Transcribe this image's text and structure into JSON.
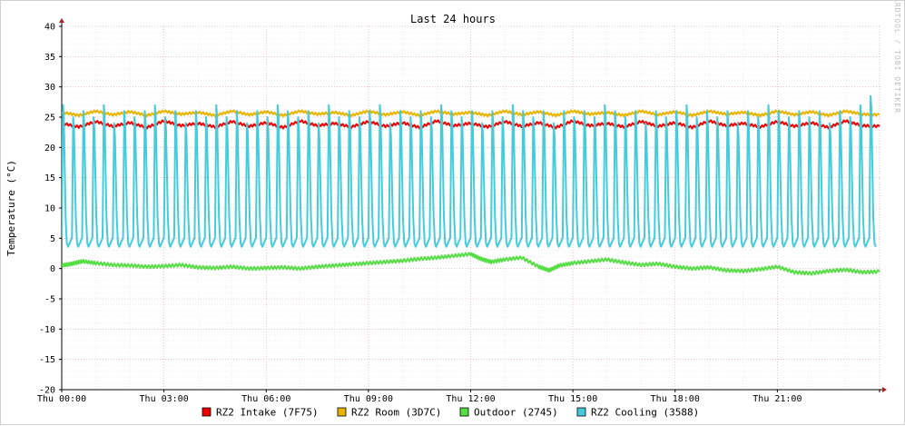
{
  "chart_data": {
    "type": "line",
    "title": "Last 24 hours",
    "ylabel": "Temperature (°C)",
    "watermark": "RRDTOOL / TOBI OETIKER",
    "ylim": [
      -20,
      40
    ],
    "y_ticks": [
      40,
      35,
      30,
      25,
      20,
      15,
      10,
      5,
      0,
      -5,
      -10,
      -15,
      -20
    ],
    "x_ticks": [
      "Thu 00:00",
      "Thu 03:00",
      "Thu 06:00",
      "Thu 09:00",
      "Thu 12:00",
      "Thu 15:00",
      "Thu 18:00",
      "Thu 21:00"
    ],
    "xlim_hours": [
      0,
      24
    ],
    "series": [
      {
        "name": "RZ2 Intake (7F75)",
        "color": "#ee0000",
        "x": [
          0,
          0.5,
          1,
          1.5,
          2,
          2.5,
          3,
          3.5,
          4,
          4.5,
          5,
          5.5,
          6,
          6.5,
          7,
          7.5,
          8,
          8.5,
          9,
          9.5,
          10,
          10.5,
          11,
          11.5,
          12,
          12.5,
          13,
          13.5,
          14,
          14.5,
          15,
          15.5,
          16,
          16.5,
          17,
          17.5,
          18,
          18.5,
          19,
          19.5,
          20,
          20.5,
          21,
          21.5,
          22,
          22.5,
          23,
          23.5,
          24
        ],
        "values": [
          24.0,
          23.4,
          24.3,
          23.5,
          24.1,
          23.3,
          24.4,
          23.6,
          24.0,
          23.4,
          24.3,
          23.5,
          24.1,
          23.3,
          24.4,
          23.6,
          24.0,
          23.4,
          24.3,
          23.5,
          24.1,
          23.3,
          24.4,
          23.6,
          24.0,
          23.4,
          24.3,
          23.5,
          24.1,
          23.3,
          24.4,
          23.6,
          24.0,
          23.4,
          24.3,
          23.5,
          24.1,
          23.3,
          24.4,
          23.6,
          24.0,
          23.4,
          24.3,
          23.5,
          24.1,
          23.3,
          24.4,
          23.6,
          23.5
        ]
      },
      {
        "name": "RZ2 Room (3D7C)",
        "color": "#e8b400",
        "x": [
          0,
          0.5,
          1,
          1.5,
          2,
          2.5,
          3,
          3.5,
          4,
          4.5,
          5,
          5.5,
          6,
          6.5,
          7,
          7.5,
          8,
          8.5,
          9,
          9.5,
          10,
          10.5,
          11,
          11.5,
          12,
          12.5,
          13,
          13.5,
          14,
          14.5,
          15,
          15.5,
          16,
          16.5,
          17,
          17.5,
          18,
          18.5,
          19,
          19.5,
          20,
          20.5,
          21,
          21.5,
          22,
          22.5,
          23,
          23.5,
          24
        ],
        "values": [
          25.8,
          25.3,
          26.0,
          25.4,
          25.9,
          25.3,
          26.0,
          25.5,
          25.8,
          25.3,
          26.0,
          25.4,
          25.9,
          25.3,
          26.0,
          25.5,
          25.8,
          25.3,
          26.0,
          25.4,
          25.9,
          25.3,
          26.0,
          25.5,
          25.8,
          25.3,
          26.0,
          25.4,
          25.9,
          25.3,
          26.0,
          25.5,
          25.8,
          25.3,
          26.0,
          25.4,
          25.9,
          25.3,
          26.0,
          25.5,
          25.8,
          25.3,
          26.0,
          25.4,
          25.9,
          25.3,
          26.0,
          25.5,
          25.4
        ]
      },
      {
        "name": "Outdoor (2745)",
        "color": "#55dd44",
        "x": [
          0,
          0.3,
          0.6,
          1,
          1.5,
          2,
          2.5,
          3,
          3.5,
          4,
          4.5,
          5,
          5.5,
          6,
          6.5,
          7,
          7.5,
          8,
          8.5,
          9,
          9.5,
          10,
          10.5,
          11,
          11.5,
          12,
          12.3,
          12.6,
          13,
          13.5,
          14,
          14.3,
          14.6,
          15,
          15.5,
          16,
          16.5,
          17,
          17.5,
          18,
          18.5,
          19,
          19.5,
          20,
          20.5,
          21,
          21.5,
          22,
          22.5,
          23,
          23.5,
          24
        ],
        "values": [
          0.5,
          0.8,
          1.2,
          0.9,
          0.6,
          0.5,
          0.3,
          0.4,
          0.6,
          0.2,
          0.1,
          0.3,
          0.0,
          0.1,
          0.2,
          0.0,
          0.3,
          0.5,
          0.7,
          0.9,
          1.1,
          1.3,
          1.6,
          1.8,
          2.1,
          2.4,
          1.6,
          1.1,
          1.5,
          1.8,
          0.3,
          -0.3,
          0.5,
          0.9,
          1.2,
          1.5,
          1.0,
          0.6,
          0.8,
          0.3,
          0.0,
          0.2,
          -0.3,
          -0.4,
          -0.1,
          0.3,
          -0.6,
          -0.8,
          -0.4,
          -0.2,
          -0.6,
          -0.5
        ]
      },
      {
        "name": "RZ2 Cooling (3588)",
        "color": "#44ccdd",
        "cycle_hours": 0.3,
        "cycle_peaks": [
          27,
          25,
          26,
          25,
          27,
          24,
          26,
          25,
          26,
          27,
          25,
          26,
          24,
          26,
          25,
          27,
          25,
          26,
          24,
          26,
          25,
          27,
          26,
          25,
          26,
          24,
          27,
          25,
          26,
          25,
          26,
          27,
          24,
          26,
          25,
          26,
          25,
          27,
          26,
          25,
          26,
          24,
          26,
          25,
          27,
          26,
          25,
          26,
          24,
          26,
          25,
          26,
          25,
          27,
          26,
          25,
          26,
          24,
          26,
          25,
          26,
          27,
          25,
          26,
          25,
          26,
          24,
          26,
          25,
          27,
          26,
          25,
          26,
          25,
          26,
          24,
          26,
          25,
          27,
          28.5
        ],
        "baseline": 3.6,
        "shoulder": 8.5
      }
    ]
  },
  "legend": {
    "items": [
      {
        "label": "RZ2 Intake (7F75)",
        "color": "#ee0000"
      },
      {
        "label": "RZ2 Room (3D7C)",
        "color": "#e8b400"
      },
      {
        "label": "Outdoor (2745)",
        "color": "#55dd44"
      },
      {
        "label": "RZ2 Cooling (3588)",
        "color": "#44ccdd"
      }
    ]
  }
}
